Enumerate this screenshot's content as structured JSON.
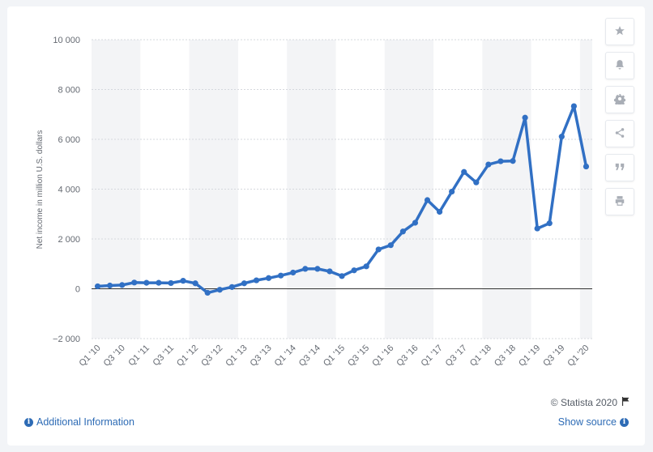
{
  "chart_data": {
    "type": "line",
    "title": "",
    "xlabel": "",
    "ylabel": "Net income in million U.S. dollars",
    "ylim": [
      -2000,
      10000
    ],
    "yticks": [
      -2000,
      0,
      2000,
      4000,
      6000,
      8000,
      10000
    ],
    "ytick_labels": [
      "−2 000",
      "0",
      "2 000",
      "4 000",
      "6 000",
      "8 000",
      "10 000"
    ],
    "x": [
      "Q1 '10",
      "Q2 '10",
      "Q3 '10",
      "Q4 '10",
      "Q1 '11",
      "Q2 '11",
      "Q3 '11",
      "Q4 '11",
      "Q1 '12",
      "Q2 '12",
      "Q3 '12",
      "Q4 '12",
      "Q1 '13",
      "Q2 '13",
      "Q3 '13",
      "Q4 '13",
      "Q1 '14",
      "Q2 '14",
      "Q3 '14",
      "Q4 '14",
      "Q1 '15",
      "Q2 '15",
      "Q3 '15",
      "Q4 '15",
      "Q1 '16",
      "Q2 '16",
      "Q3 '16",
      "Q4 '16",
      "Q1 '17",
      "Q2 '17",
      "Q3 '17",
      "Q4 '17",
      "Q1 '18",
      "Q2 '18",
      "Q3 '18",
      "Q4 '18",
      "Q1 '19",
      "Q2 '19",
      "Q3 '19",
      "Q4 '19",
      "Q1 '20"
    ],
    "xtick_labels": [
      "Q1 '10",
      "Q3 '10",
      "Q1 '11",
      "Q3 '11",
      "Q1 '12",
      "Q3 '12",
      "Q1 '13",
      "Q3 '13",
      "Q1 '14",
      "Q3 '14",
      "Q1 '15",
      "Q3 '15",
      "Q1 '16",
      "Q3 '16",
      "Q1 '17",
      "Q3 '17",
      "Q1 '18",
      "Q3 '18",
      "Q1 '19",
      "Q3 '19",
      "Q1 '20"
    ],
    "series": [
      {
        "values": [
          100,
          130,
          150,
          250,
          240,
          240,
          230,
          320,
          220,
          -160,
          -40,
          70,
          220,
          340,
          430,
          530,
          650,
          800,
          800,
          700,
          510,
          740,
          900,
          1580,
          1750,
          2300,
          2650,
          3560,
          3090,
          3900,
          4690,
          4270,
          4990,
          5120,
          5130,
          6870,
          2420,
          2630,
          6110,
          7330,
          4910
        ]
      }
    ],
    "grid": true,
    "legend": "none",
    "colors": {
      "line": "#3170c4",
      "band": "#f3f4f6",
      "grid": "#d5d8dd",
      "zero_line": "#333333",
      "axis_text": "#666b73"
    }
  },
  "toolbar": {
    "buttons": [
      {
        "name": "favorite-button",
        "icon": "star-icon"
      },
      {
        "name": "notification-button",
        "icon": "bell-icon"
      },
      {
        "name": "settings-button",
        "icon": "gear-icon"
      },
      {
        "name": "share-button",
        "icon": "share-icon"
      },
      {
        "name": "cite-button",
        "icon": "quote-icon"
      },
      {
        "name": "print-button",
        "icon": "print-icon"
      }
    ]
  },
  "footer": {
    "additional_info": "Additional Information",
    "show_source": "Show source",
    "copyright": "© Statista 2020"
  }
}
